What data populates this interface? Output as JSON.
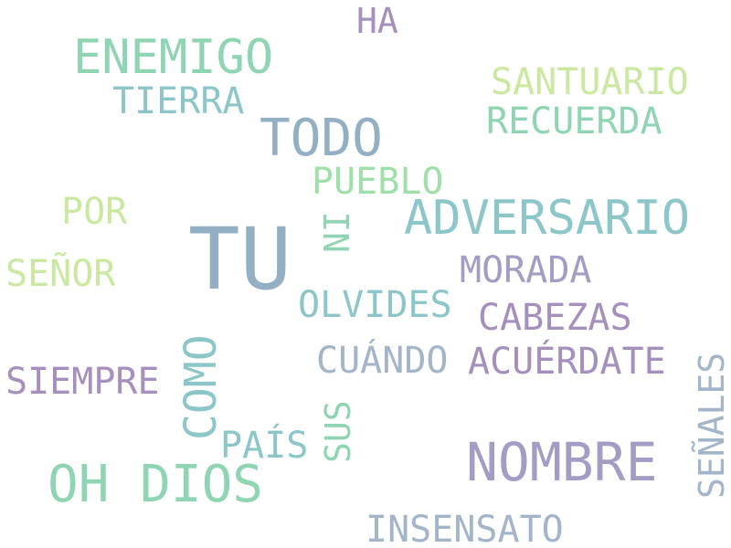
{
  "word_cloud": {
    "words": [
      {
        "id": "tu",
        "text": "TU",
        "color": "#93afc3"
      },
      {
        "id": "nombre",
        "text": "NOMBRE",
        "color": "#a49cc4"
      },
      {
        "id": "oh-dios",
        "text": "OH DIOS",
        "color": "#8fd5b3"
      },
      {
        "id": "todo",
        "text": "TODO",
        "color": "#93afc3"
      },
      {
        "id": "adversario",
        "text": "ADVERSARIO",
        "color": "#8cc6c8"
      },
      {
        "id": "enemigo",
        "text": "ENEMIGO",
        "color": "#8fd5b3"
      },
      {
        "id": "como",
        "text": "COMO",
        "color": "#8cc6c8"
      },
      {
        "id": "senales",
        "text": "SEÑALES",
        "color": "#a3b5c8"
      },
      {
        "id": "insensato",
        "text": "INSENSATO",
        "color": "#a3b5c8"
      },
      {
        "id": "acuerdate",
        "text": "ACUÉRDATE",
        "color": "#a58fbd"
      },
      {
        "id": "cabezas",
        "text": "CABEZAS",
        "color": "#a58fbd"
      },
      {
        "id": "morada",
        "text": "MORADA",
        "color": "#a49cc4"
      },
      {
        "id": "olvides",
        "text": "OLVIDES",
        "color": "#8cc6c8"
      },
      {
        "id": "cuando",
        "text": "CUÁNDO",
        "color": "#a3b5c8"
      },
      {
        "id": "siempre",
        "text": "SIEMPRE",
        "color": "#a58fbd"
      },
      {
        "id": "santuario",
        "text": "SANTUARIO",
        "color": "#cbe8a0"
      },
      {
        "id": "recuerda",
        "text": "RECUERDA",
        "color": "#8fd5b3"
      },
      {
        "id": "tierra",
        "text": "TIERRA",
        "color": "#8cc6c8"
      },
      {
        "id": "pueblo",
        "text": "PUEBLO",
        "color": "#9fdfa9"
      },
      {
        "id": "senor",
        "text": "SEÑOR",
        "color": "#cbe8a0"
      },
      {
        "id": "por",
        "text": "POR",
        "color": "#cbe8a0"
      },
      {
        "id": "pais",
        "text": "PAÍS",
        "color": "#8cc6c8"
      },
      {
        "id": "ha",
        "text": "HA",
        "color": "#a58fbd"
      },
      {
        "id": "ni",
        "text": "NI",
        "color": "#8fd5b3"
      },
      {
        "id": "sus",
        "text": "SUS",
        "color": "#8fd5b3"
      }
    ]
  }
}
